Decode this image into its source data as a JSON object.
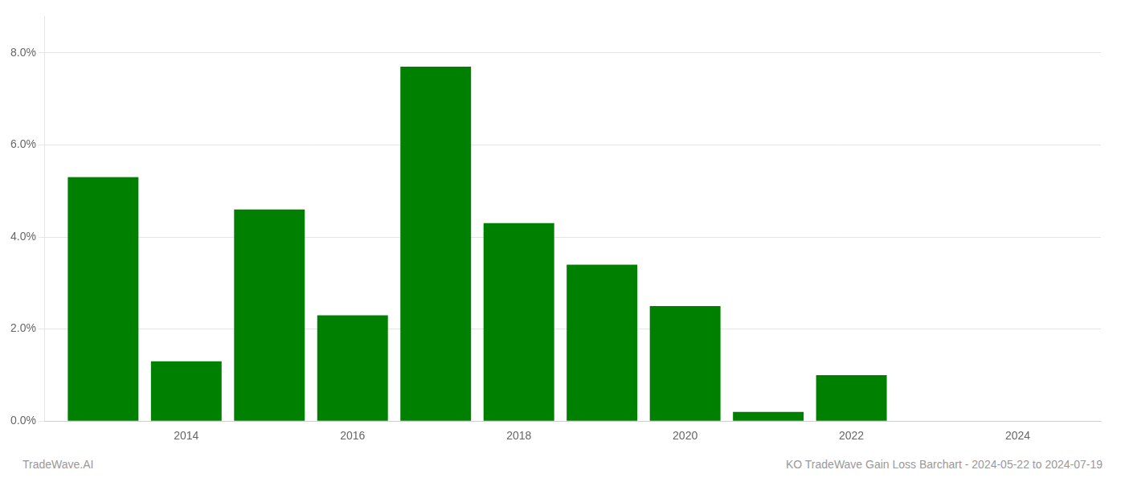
{
  "chart_data": {
    "type": "bar",
    "x": [
      2013,
      2014,
      2015,
      2016,
      2017,
      2018,
      2019,
      2020,
      2021,
      2022,
      2023,
      2024
    ],
    "values": [
      0.053,
      0.013,
      0.046,
      0.023,
      0.077,
      0.043,
      0.034,
      0.025,
      0.002,
      0.01,
      0.0,
      0.0
    ],
    "color": "#008000",
    "xlim": [
      2012.3,
      2025.0
    ],
    "xticks": [
      2014,
      2016,
      2018,
      2020,
      2022,
      2024
    ],
    "ylim": [
      0,
      0.088
    ],
    "yticks": [
      {
        "value": 0.0,
        "label": "0.0%"
      },
      {
        "value": 0.02,
        "label": "2.0%"
      },
      {
        "value": 0.04,
        "label": "4.0%"
      },
      {
        "value": 0.06,
        "label": "6.0%"
      },
      {
        "value": 0.08,
        "label": "8.0%"
      }
    ],
    "grid": true,
    "annotations": [
      "TradeWave.AI",
      "KO TradeWave Gain Loss Barchart - 2024-05-22 to 2024-07-19"
    ]
  }
}
